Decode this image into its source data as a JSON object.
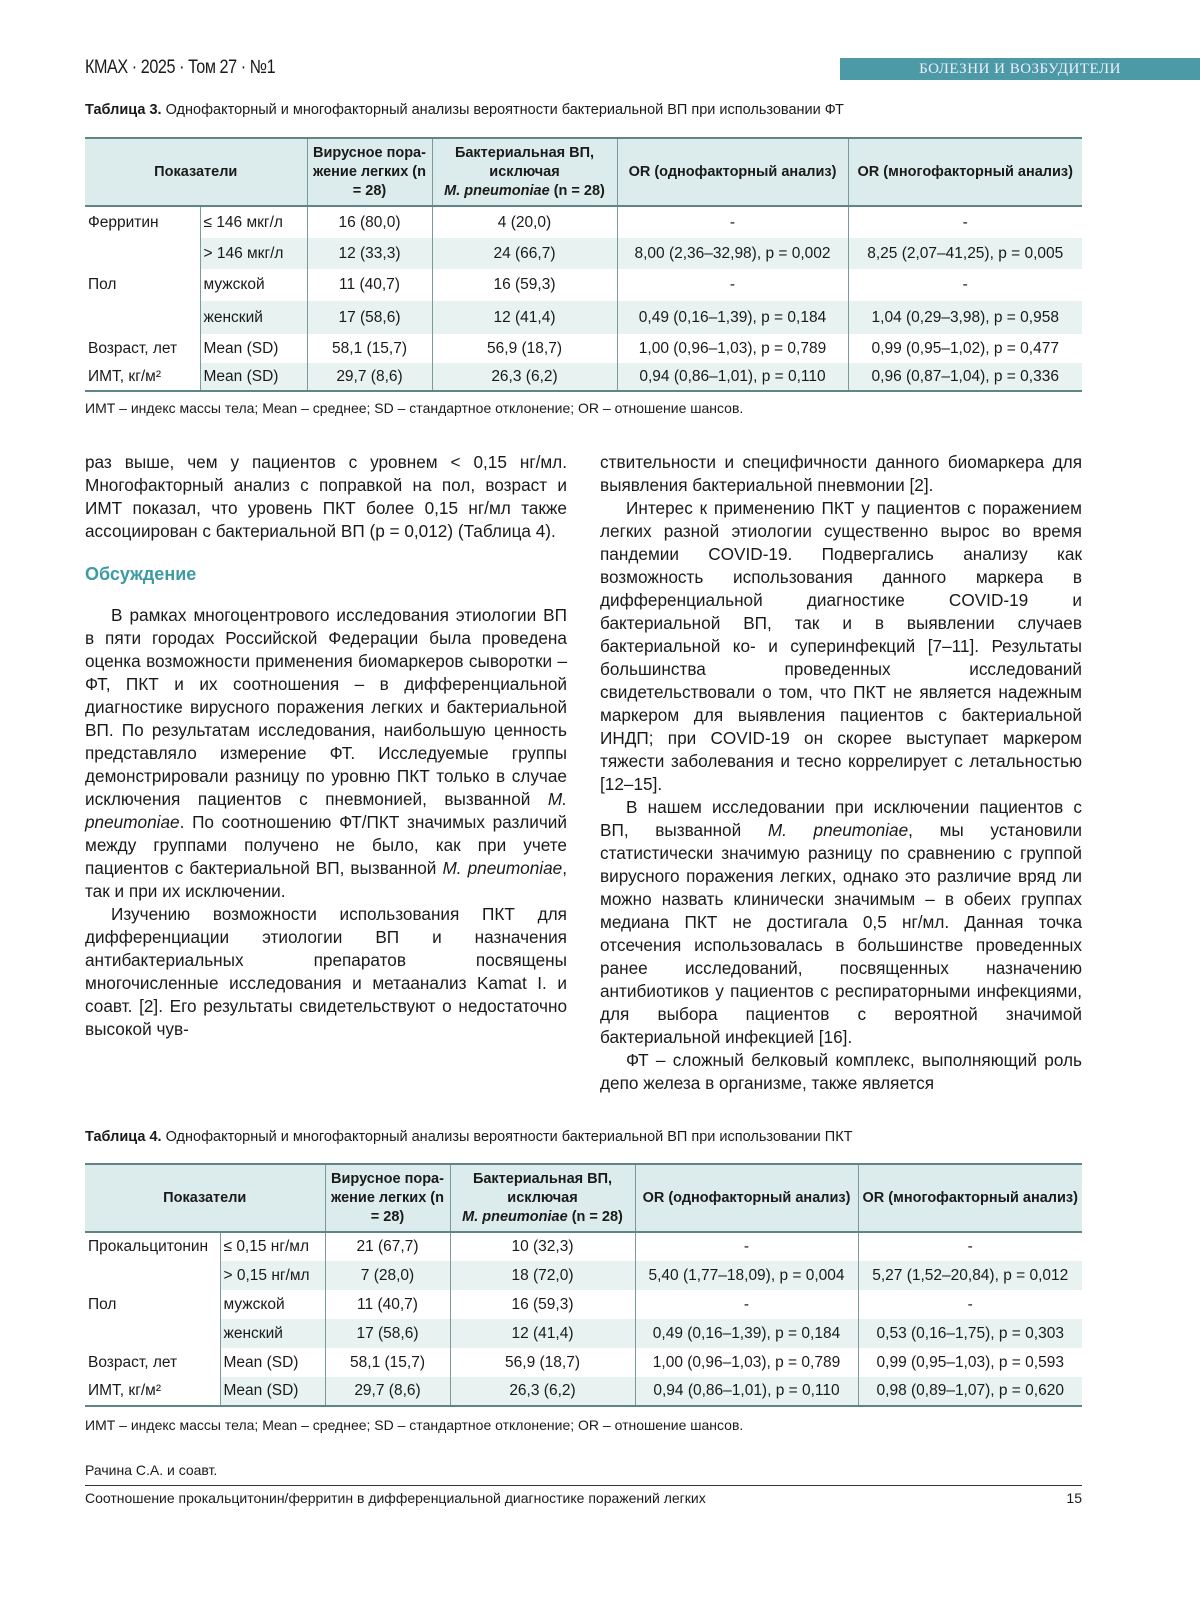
{
  "header": {
    "journal": "КМАХ · 2025 · Том 27 · №1",
    "section": "БОЛЕЗНИ И ВОЗБУДИТЕЛИ",
    "section_color": "#4b9aa5"
  },
  "table3": {
    "caption_label": "Таблица 3.",
    "caption_text": " Однофакторный и многофакторный анализы вероятности бактериальной ВП при использовании ФТ",
    "headers": [
      "Показатели",
      "Вирусное пора-жение легких (n = 28)",
      "Бактериальная ВП, исключая",
      "M. pneumoniae",
      "(n = 28)",
      "OR (однофакторный анализ)",
      "OR (многофакторный анализ)"
    ],
    "rows": [
      [
        "Ферритин",
        "≤ 146 мкг/л",
        "16 (80,0)",
        "4 (20,0)",
        "-",
        "-"
      ],
      [
        "",
        "> 146 мкг/л",
        "12 (33,3)",
        "24 (66,7)",
        "8,00 (2,36–32,98), p = 0,002",
        "8,25 (2,07–41,25), p = 0,005"
      ],
      [
        "Пол",
        "мужской",
        "11 (40,7)",
        "16 (59,3)",
        "-",
        "-"
      ],
      [
        "",
        "женский",
        "17 (58,6)",
        "12 (41,4)",
        "0,49 (0,16–1,39), p = 0,184",
        "1,04 (0,29–3,98), p = 0,958"
      ],
      [
        "Возраст, лет",
        "Mean (SD)",
        "58,1 (15,7)",
        "56,9 (18,7)",
        "1,00 (0,96–1,03), p = 0,789",
        "0,99 (0,95–1,02), p = 0,477"
      ],
      [
        "ИМТ, кг/м²",
        "Mean (SD)",
        "29,7 (8,6)",
        "26,3 (6,2)",
        "0,94 (0,86–1,01), p = 0,110",
        "0,96 (0,87–1,04), p = 0,336"
      ]
    ],
    "note": "ИМТ – индекс массы тела; Mean – среднее; SD – стандартное отклонение; OR – отношение шансов."
  },
  "body": {
    "left_intro": "раз выше, чем у пациентов с уровнем < 0,15 нг/мл. Многофакторный анализ с поправкой на пол, возраст и ИМТ показал, что уровень ПКТ более 0,15 нг/мл также ассоциирован с бактериальной ВП (p = 0,012) (Таблица 4).",
    "heading": "Обсуждение",
    "left_paragraphs": [
      "В рамках многоцентрового исследования этиологии ВП в пяти городах Российской Федерации была проведена оценка возможности применения биомаркеров сыворотки – ФТ, ПКТ и их соотношения – в дифференциальной диагностике вирусного поражения легких и бактериальной ВП. По результатам исследования, наибольшую ценность представляло измерение ФТ. Исследуемые группы демонстрировали разницу по уровню ПКТ только в случае исключения пациентов с пневмонией, вызванной M. pneumoniae. По соотношению ФТ/ПКТ значимых различий между группами получено не было, как при учете пациентов с бактериальной ВП, вызванной M. pneumoniae, так и при их исключении.",
      "Изучению возможности использования ПКТ для дифференциации этиологии ВП и назначения антибактериальных препаратов посвящены многочисленные исследования и метаанализ Kamat I. и соавт. [2]. Его результаты свидетельствуют о недостаточно высокой чув-"
    ],
    "right_intro": "ствительности и специфичности данного биомаркера для выявления бактериальной пневмонии [2].",
    "right_paragraphs": [
      "Интерес к применению ПКТ у пациентов с поражением легких разной этиологии существенно вырос во время пандемии COVID-19. Подвергались анализу как возможность использования данного маркера в дифференциальной диагностике COVID-19 и бактериальной ВП, так и в выявлении случаев бактериальной ко- и суперинфекций [7–11]. Результаты большинства проведенных исследований свидетельствовали о том, что ПКТ не является надежным маркером для выявления пациентов с бактериальной ИНДП; при COVID-19 он скорее выступает маркером тяжести заболевания и тесно коррелирует с летальностью [12–15].",
      "В нашем исследовании при исключении пациентов с ВП, вызванной M. pneumoniae, мы установили статистически значимую разницу по сравнению с группой вирусного поражения легких, однако это различие вряд ли можно назвать клинически значимым – в обеих группах медиана ПКТ не достигала 0,5 нг/мл. Данная точка отсечения использовалась в большинстве проведенных ранее исследований, посвященных назначению антибиотиков у пациентов с респираторными инфекциями, для выбора пациентов с вероятной значимой бактериальной инфекцией [16].",
      "ФТ – сложный белковый комплекс, выполняющий роль депо железа в организме, также является"
    ]
  },
  "table4": {
    "caption_label": "Таблица 4.",
    "caption_text": " Однофакторный и многофакторный анализы вероятности бактериальной ВП при использовании ПКТ",
    "headers": [
      "Показатели",
      "Вирусное пора-жение легких (n = 28)",
      "Бактериальная ВП, исключая",
      "M. pneumoniae",
      "(n = 28)",
      "OR (однофакторный анализ)",
      "OR (многофакторный анализ)"
    ],
    "rows": [
      [
        "Прокальцитонин",
        "≤ 0,15 нг/мл",
        "21 (67,7)",
        "10 (32,3)",
        "-",
        "-"
      ],
      [
        "",
        "> 0,15 нг/мл",
        "7 (28,0)",
        "18 (72,0)",
        "5,40 (1,77–18,09), p = 0,004",
        "5,27 (1,52–20,84), p = 0,012"
      ],
      [
        "Пол",
        "мужской",
        "11 (40,7)",
        "16 (59,3)",
        "-",
        "-"
      ],
      [
        "",
        "женский",
        "17 (58,6)",
        "12 (41,4)",
        "0,49 (0,16–1,39), p = 0,184",
        "0,53 (0,16–1,75), p = 0,303"
      ],
      [
        "Возраст, лет",
        "Mean (SD)",
        "58,1 (15,7)",
        "56,9 (18,7)",
        "1,00 (0,96–1,03), p = 0,789",
        "0,99 (0,95–1,03), p = 0,593"
      ],
      [
        "ИМТ, кг/м²",
        "Mean (SD)",
        "29,7 (8,6)",
        "26,3 (6,2)",
        "0,94 (0,86–1,01), p = 0,110",
        "0,98 (0,89–1,07), p = 0,620"
      ]
    ],
    "note": "ИМТ – индекс массы тела; Mean – среднее; SD – стандартное отклонение; OR – отношение шансов."
  },
  "footer": {
    "authors": "Рачина С.А. и соавт.",
    "title": "Соотношение прокальцитонин/ферритин в дифференциальной диагностике поражений легких",
    "page": "15"
  }
}
